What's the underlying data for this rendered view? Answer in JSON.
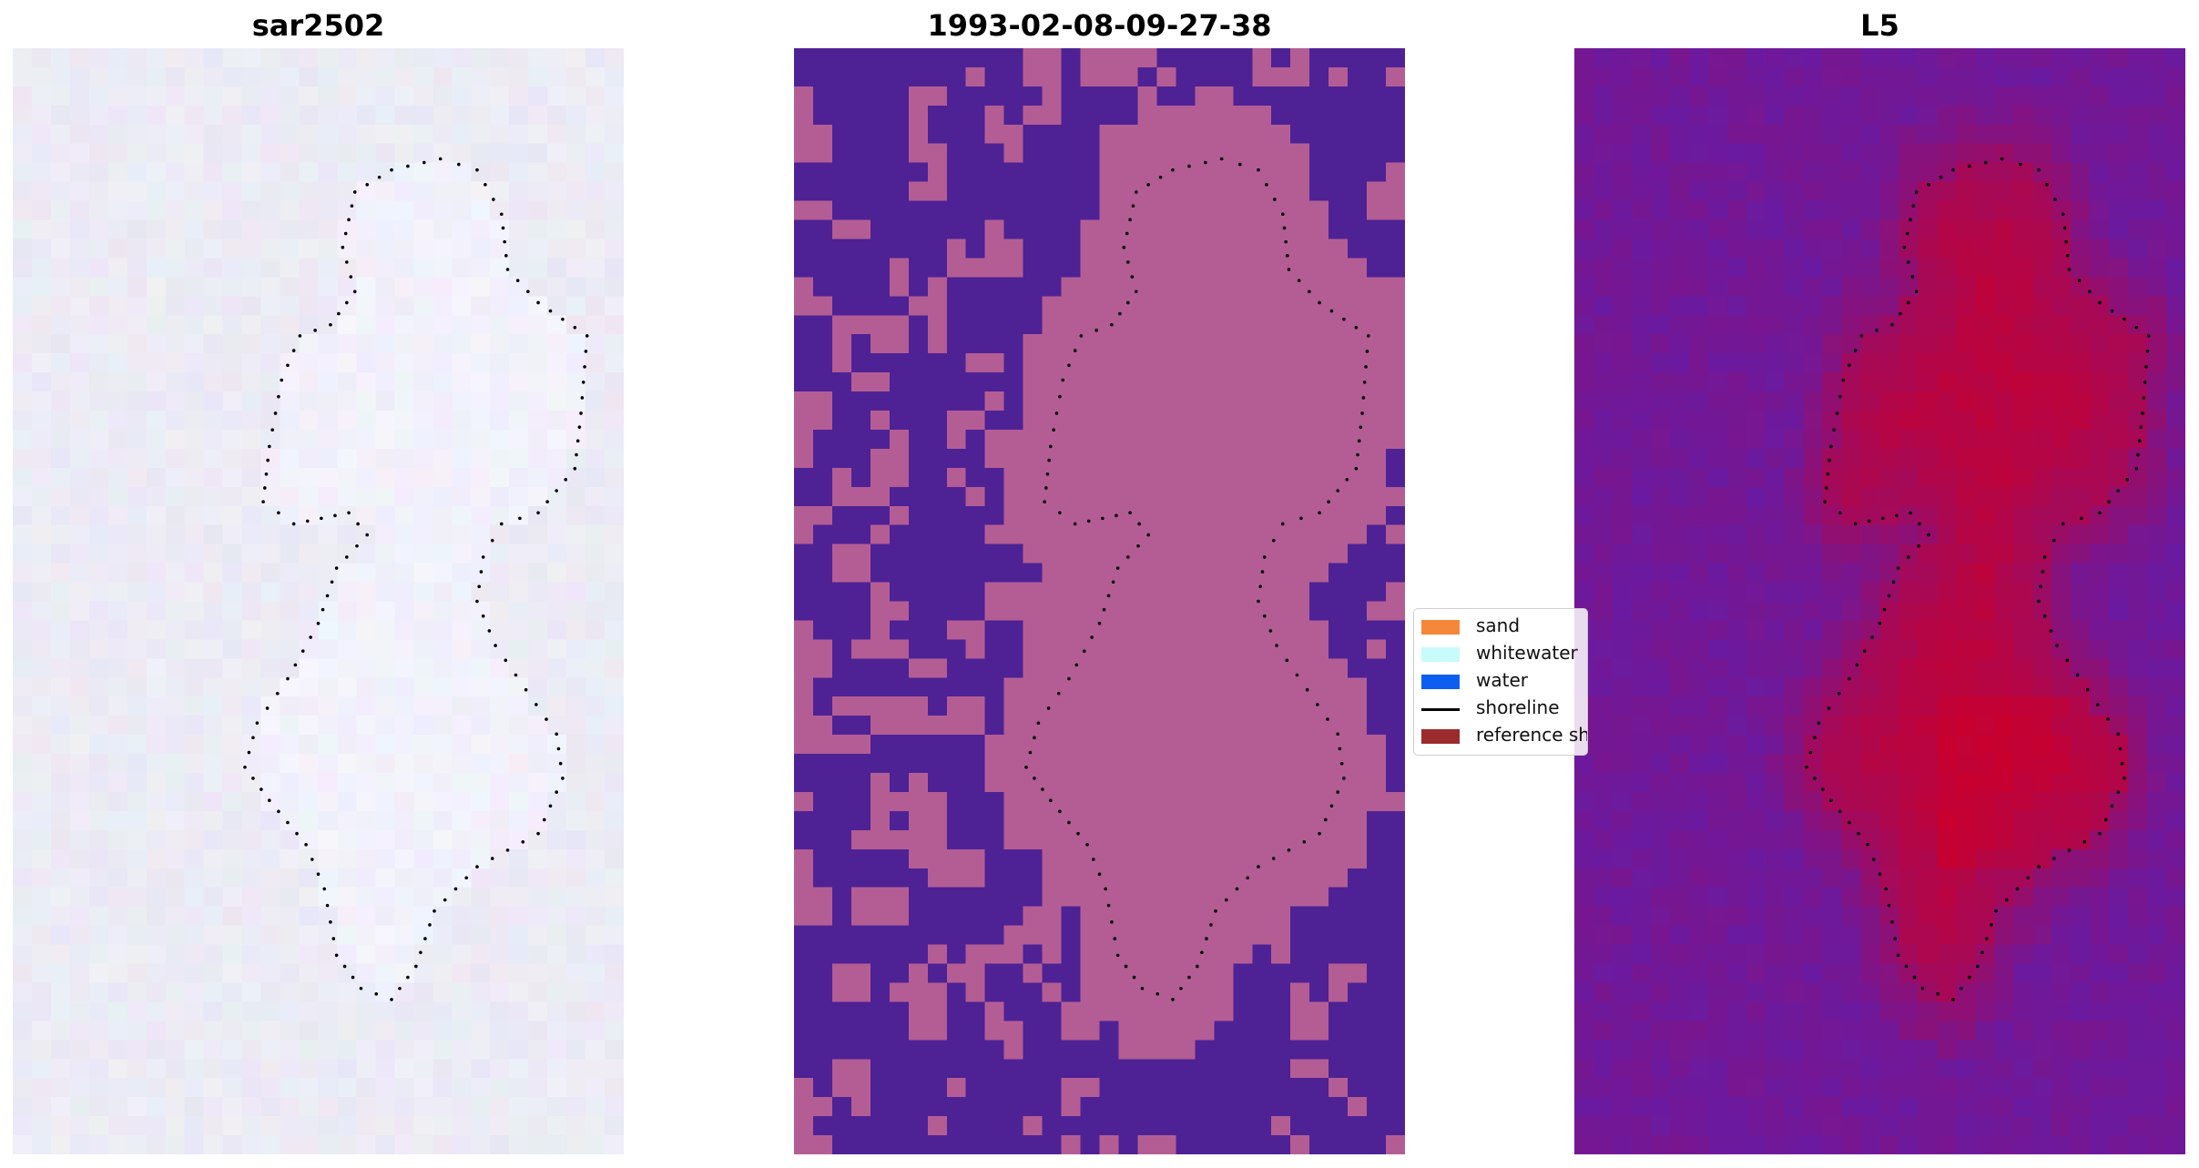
{
  "panels": [
    {
      "title": "sar2502",
      "style": "rgb"
    },
    {
      "title": "1993-02-08-09-27-38",
      "style": "classified"
    },
    {
      "title": "L5",
      "style": "heat"
    }
  ],
  "legend": {
    "items": [
      {
        "label": "sand",
        "kind": "box",
        "color": "#f5873a"
      },
      {
        "label": "whitewater",
        "kind": "box",
        "color": "#c9fbfb"
      },
      {
        "label": "water",
        "kind": "box",
        "color": "#0c5ef0"
      },
      {
        "label": "shoreline",
        "kind": "line",
        "color": "#000000"
      },
      {
        "label": "reference shoreline",
        "kind": "box",
        "color": "#9c2b2d"
      }
    ]
  },
  "colors": {
    "classified_land": "#b45d95",
    "classified_water": "#4e2295",
    "heat_low": "#6a1aa0",
    "heat_high": "#c8002e",
    "rgb_background": "#ecebf5",
    "shoreline_dots": "#000000"
  }
}
